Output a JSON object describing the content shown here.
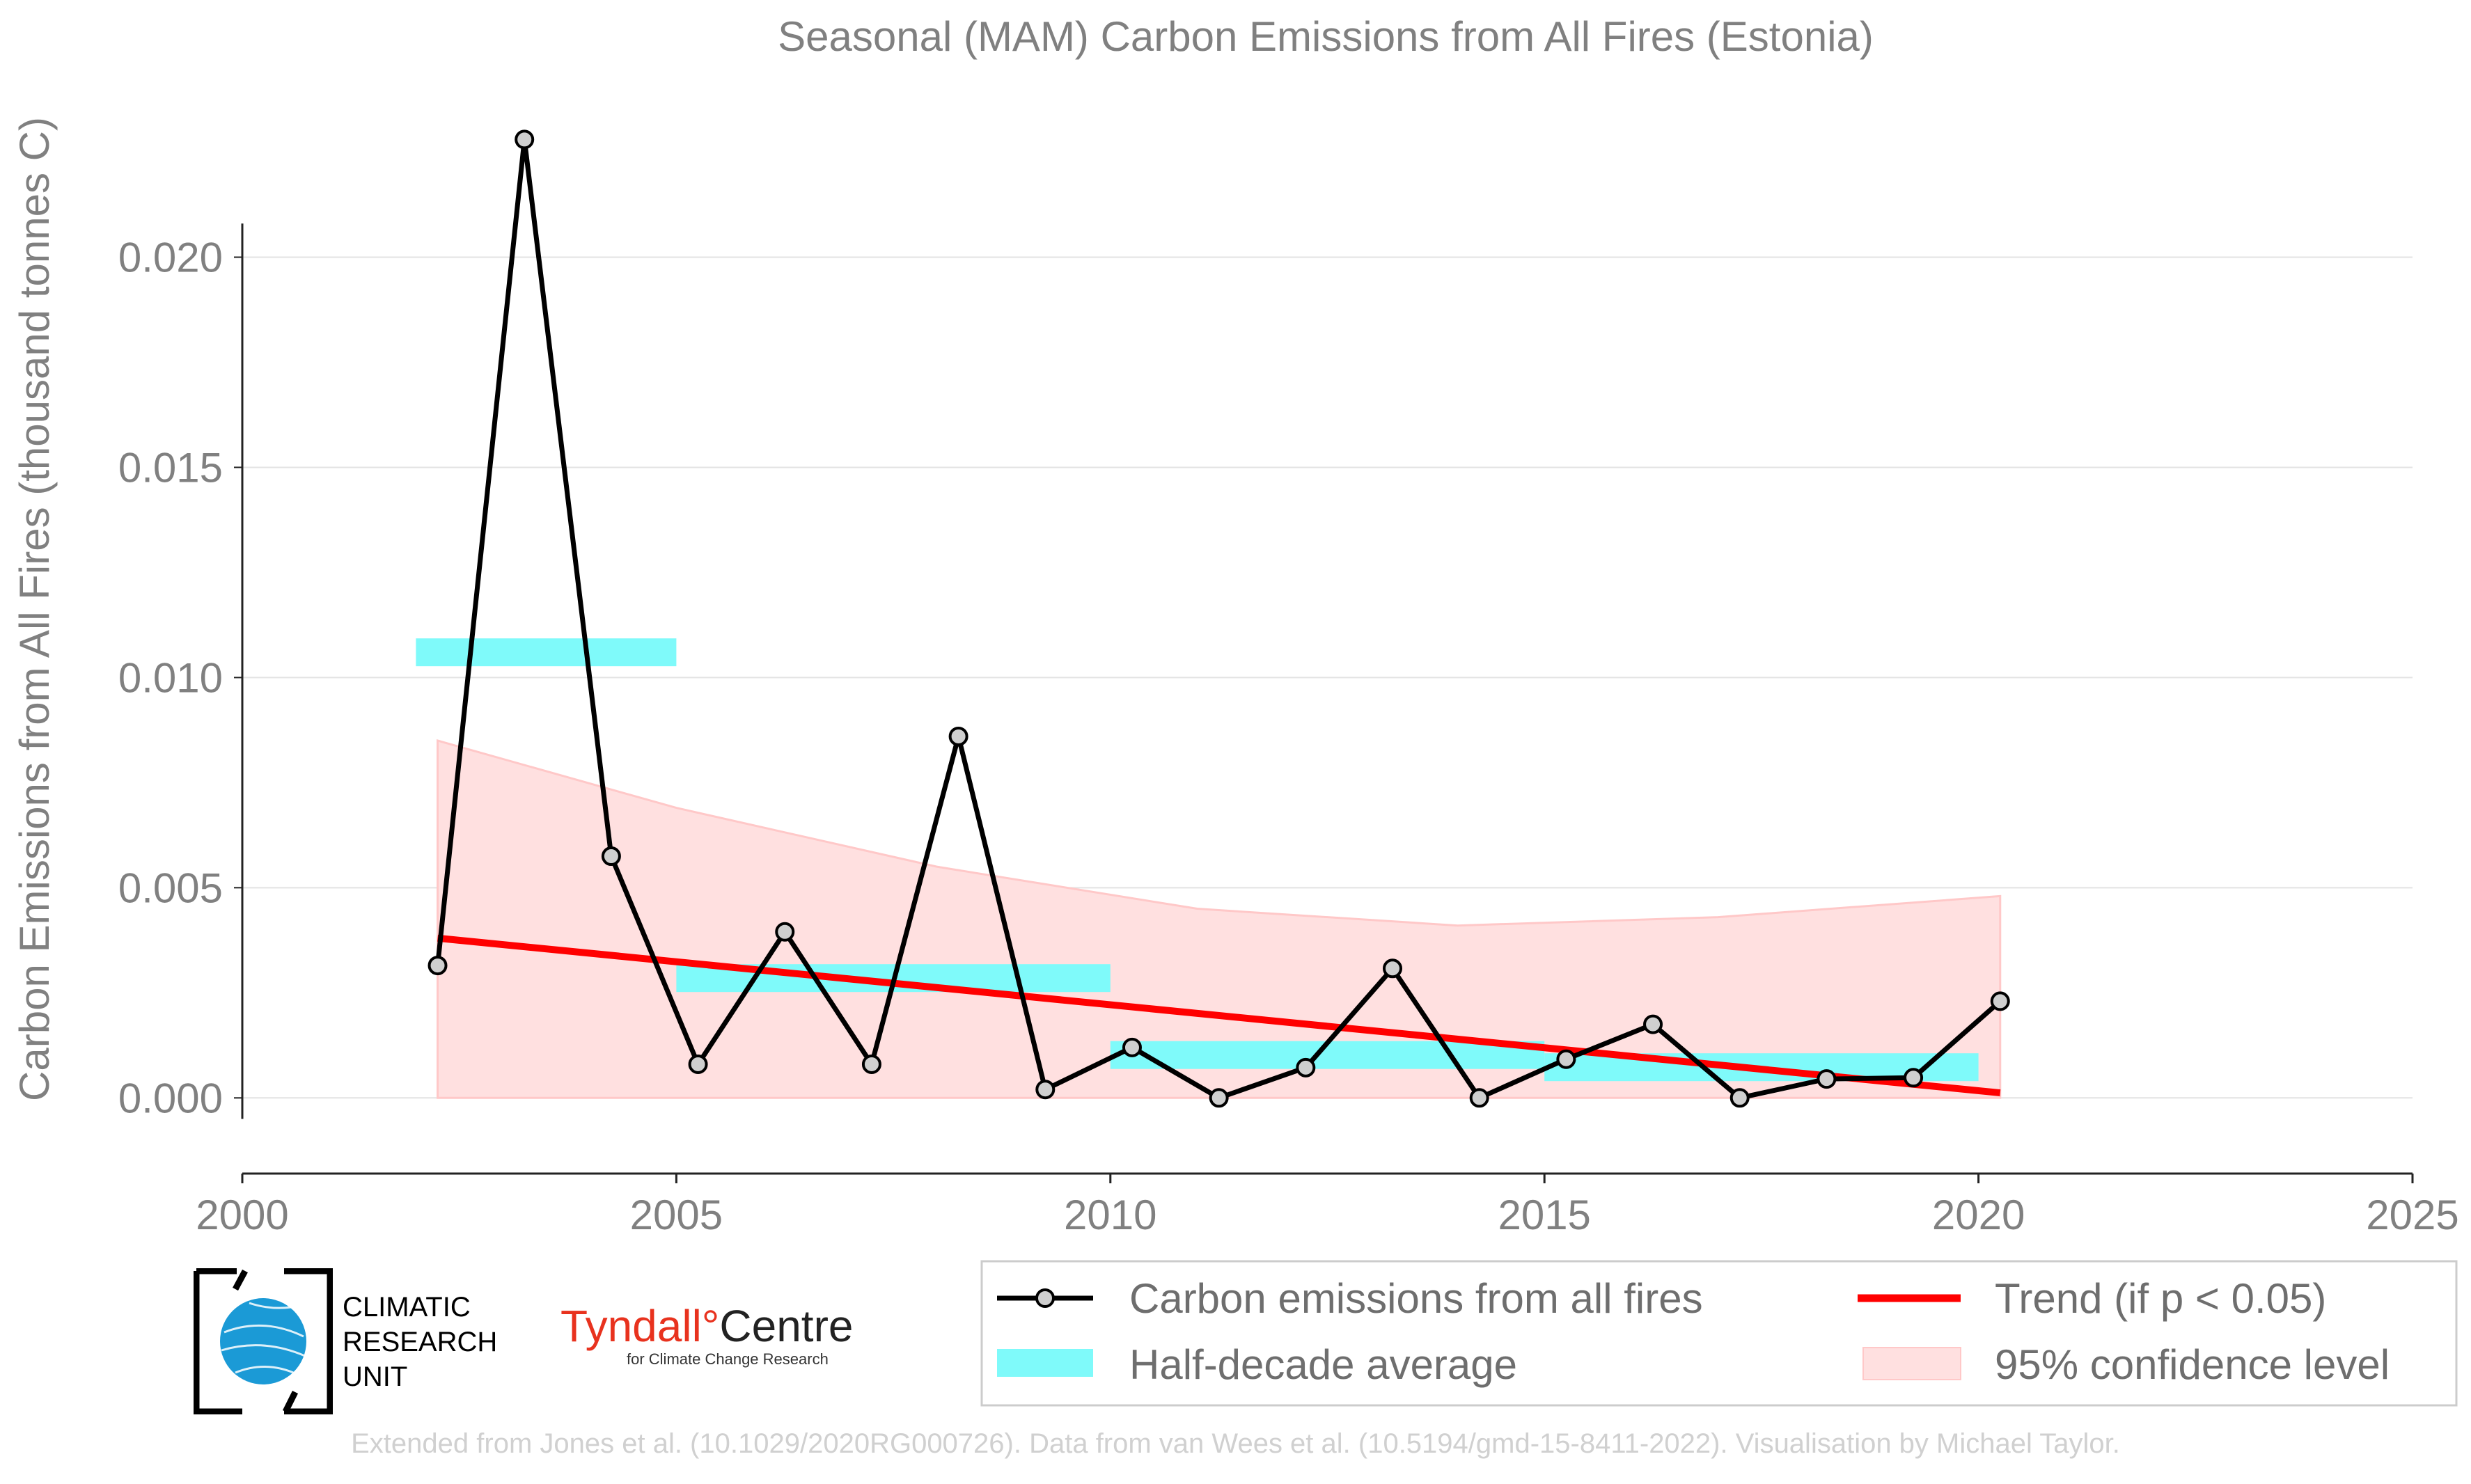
{
  "chart_data": {
    "type": "line",
    "title": "Seasonal (MAM) Carbon Emissions from All Fires (Estonia)",
    "xlabel": "",
    "ylabel": "Carbon Emissions from All Fires (thousand tonnes C)",
    "xlim": [
      2000,
      2025
    ],
    "ylim": [
      -0.0018,
      0.0238
    ],
    "x_ticks": [
      "2000",
      "2005",
      "2010",
      "2015",
      "2020",
      "2025"
    ],
    "y_ticks": [
      "0.000",
      "0.005",
      "0.010",
      "0.015",
      "0.020"
    ],
    "grid": "horizontal",
    "legend_placement": "bottom",
    "series": [
      {
        "name": "Carbon emissions from all fires",
        "x": [
          2002.25,
          2003.25,
          2004.25,
          2005.25,
          2006.25,
          2007.25,
          2008.25,
          2009.25,
          2010.25,
          2011.25,
          2012.25,
          2013.25,
          2014.25,
          2015.25,
          2016.25,
          2017.25,
          2018.25,
          2019.25,
          2020.25
        ],
        "y": [
          0.00315,
          0.0228,
          0.00575,
          0.0008,
          0.00395,
          0.0008,
          0.0086,
          0.0002,
          0.0012,
          0.0,
          0.00072,
          0.00308,
          0.0,
          0.00092,
          0.00175,
          0.0,
          0.00045,
          0.00048,
          0.0023
        ],
        "color": "#000000"
      },
      {
        "name": "Half-decade average",
        "segments": [
          {
            "x0": 2002,
            "x1": 2005,
            "y": 0.0106
          },
          {
            "x0": 2005,
            "x1": 2010,
            "y": 0.00285
          },
          {
            "x0": 2010,
            "x1": 2015,
            "y": 0.00102
          },
          {
            "x0": 2015,
            "x1": 2020,
            "y": 0.00073
          }
        ],
        "color": "#7ffafa"
      },
      {
        "name": "Trend (if p < 0.05)",
        "x": [
          2002.25,
          2020.25
        ],
        "y": [
          0.0038,
          0.00012
        ],
        "color": "#ff0000"
      },
      {
        "name": "95% confidence level",
        "x": [
          2002.25,
          2005,
          2008,
          2011,
          2014,
          2017,
          2020.25
        ],
        "upper": [
          0.0085,
          0.0069,
          0.0055,
          0.0045,
          0.0041,
          0.0043,
          0.0048
        ],
        "lower": [
          0,
          0,
          0,
          0,
          0,
          0,
          0
        ],
        "color": "#ffe0e0"
      }
    ]
  },
  "legend": {
    "items": [
      "Carbon emissions from all fires",
      "Trend (if p < 0.05)",
      "Half-decade average",
      "95% confidence level"
    ]
  },
  "logos": {
    "cru_lines": [
      "CLIMATIC",
      "RESEARCH",
      "UNIT"
    ],
    "tyndall_main": "Tyndall",
    "tyndall_degree": "°",
    "tyndall_centre": "Centre",
    "tyndall_sub": "for Climate Change Research"
  },
  "footer": "Extended from Jones et al. (10.1029/2020RG000726). Data from van Wees et al. (10.5194/gmd-15-8411-2022). Visualisation by Michael Taylor."
}
